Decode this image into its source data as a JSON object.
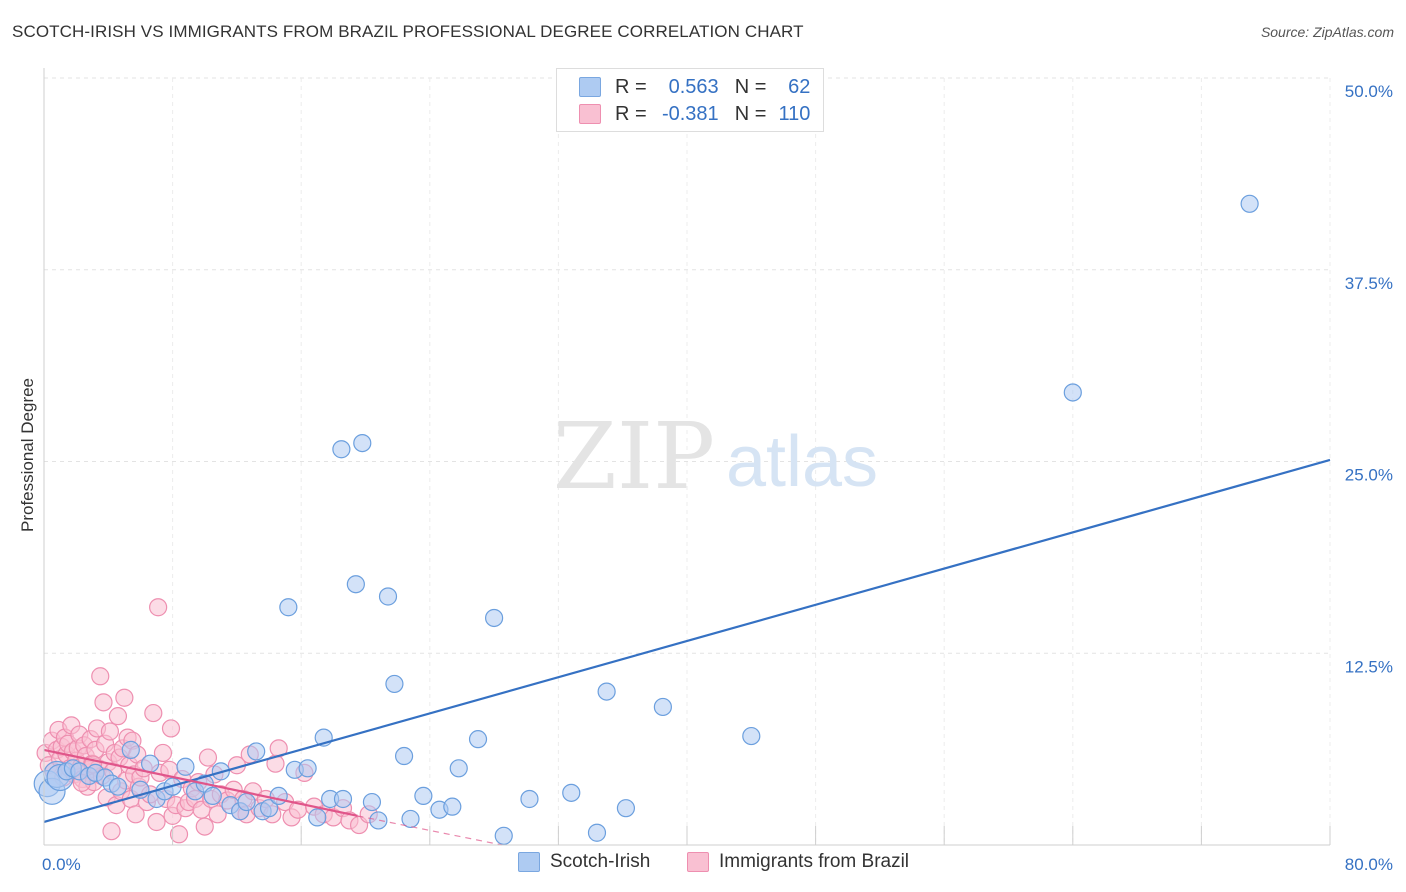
{
  "title": "SCOTCH-IRISH VS IMMIGRANTS FROM BRAZIL PROFESSIONAL DEGREE CORRELATION CHART",
  "source": "Source: ZipAtlas.com",
  "watermark": {
    "zip": "ZIP",
    "atlas": "atlas"
  },
  "stats": [
    {
      "r_label": "R =",
      "r_value": "0.563",
      "n_label": "N =",
      "n_value": "62",
      "color": "#aecbf2",
      "border": "#7aa7e0"
    },
    {
      "r_label": "R =",
      "r_value": "-0.381",
      "n_label": "N =",
      "n_value": "110",
      "color": "#f9c0d2",
      "border": "#ee8fb0"
    }
  ],
  "chart_data": {
    "type": "scatter",
    "title": "SCOTCH-IRISH VS IMMIGRANTS FROM BRAZIL PROFESSIONAL DEGREE CORRELATION CHART",
    "xlabel": "",
    "ylabel": "Professional Degree",
    "xlim": [
      0,
      80
    ],
    "ylim": [
      0,
      50
    ],
    "x_tick_labels": [
      "0.0%",
      "80.0%"
    ],
    "y_ticks": [
      12.5,
      25.0,
      37.5,
      50.0
    ],
    "y_tick_labels": [
      "12.5%",
      "25.0%",
      "37.5%",
      "50.0%"
    ],
    "grid": true,
    "legend_position": "bottom",
    "series": [
      {
        "name": "Scotch-Irish",
        "color": "#aecbf2",
        "stroke": "#6b9fde",
        "trend": {
          "x": [
            0,
            80
          ],
          "y": [
            1.5,
            25.1
          ],
          "color": "#3571c3",
          "dashed_to": null
        },
        "points": [
          [
            0.2,
            4.0
          ],
          [
            0.5,
            3.5
          ],
          [
            0.8,
            4.6
          ],
          [
            1.0,
            4.4
          ],
          [
            1.4,
            4.8
          ],
          [
            1.8,
            5.0
          ],
          [
            2.2,
            4.8
          ],
          [
            2.8,
            4.5
          ],
          [
            3.2,
            4.7
          ],
          [
            3.8,
            4.4
          ],
          [
            4.2,
            4.0
          ],
          [
            4.6,
            3.8
          ],
          [
            5.4,
            6.2
          ],
          [
            6.0,
            3.6
          ],
          [
            6.6,
            5.3
          ],
          [
            7.0,
            3.0
          ],
          [
            7.5,
            3.5
          ],
          [
            8.0,
            3.8
          ],
          [
            8.8,
            5.1
          ],
          [
            9.4,
            3.5
          ],
          [
            10.0,
            4.0
          ],
          [
            10.5,
            3.2
          ],
          [
            11.0,
            4.8
          ],
          [
            11.6,
            2.6
          ],
          [
            12.2,
            2.2
          ],
          [
            12.6,
            2.8
          ],
          [
            13.2,
            6.1
          ],
          [
            13.6,
            2.2
          ],
          [
            14.0,
            2.4
          ],
          [
            14.6,
            3.2
          ],
          [
            15.2,
            15.5
          ],
          [
            15.6,
            4.9
          ],
          [
            16.4,
            5.0
          ],
          [
            17.0,
            1.8
          ],
          [
            17.4,
            7.0
          ],
          [
            17.8,
            3.0
          ],
          [
            18.6,
            3.0
          ],
          [
            18.5,
            25.8
          ],
          [
            19.4,
            17.0
          ],
          [
            19.8,
            26.2
          ],
          [
            20.4,
            2.8
          ],
          [
            20.8,
            1.6
          ],
          [
            21.4,
            16.2
          ],
          [
            21.8,
            10.5
          ],
          [
            22.4,
            5.8
          ],
          [
            22.8,
            1.7
          ],
          [
            23.6,
            3.2
          ],
          [
            24.6,
            2.3
          ],
          [
            25.4,
            2.5
          ],
          [
            25.8,
            5.0
          ],
          [
            27.0,
            6.9
          ],
          [
            28.0,
            14.8
          ],
          [
            28.6,
            0.6
          ],
          [
            30.2,
            3.0
          ],
          [
            32.8,
            3.4
          ],
          [
            34.4,
            0.8
          ],
          [
            35.0,
            10.0
          ],
          [
            36.2,
            2.4
          ],
          [
            38.5,
            9.0
          ],
          [
            44.0,
            7.1
          ],
          [
            64.0,
            29.5
          ],
          [
            75.0,
            41.8
          ]
        ]
      },
      {
        "name": "Immigrants from Brazil",
        "color": "#f9c0d2",
        "stroke": "#ee8fb0",
        "trend": {
          "x": [
            0,
            19.5
          ],
          "y": [
            6.2,
            1.9
          ],
          "color": "#e0558a",
          "dashed_to": [
            28.5,
            0.0
          ]
        },
        "points": [
          [
            0.1,
            6.0
          ],
          [
            0.3,
            5.2
          ],
          [
            0.5,
            6.8
          ],
          [
            0.6,
            4.8
          ],
          [
            0.8,
            6.2
          ],
          [
            0.9,
            7.5
          ],
          [
            1.0,
            5.6
          ],
          [
            1.1,
            6.4
          ],
          [
            1.2,
            4.4
          ],
          [
            1.3,
            7.0
          ],
          [
            1.4,
            5.9
          ],
          [
            1.5,
            6.6
          ],
          [
            1.6,
            5.0
          ],
          [
            1.7,
            7.8
          ],
          [
            1.8,
            6.1
          ],
          [
            1.9,
            4.6
          ],
          [
            2.0,
            5.5
          ],
          [
            2.1,
            6.3
          ],
          [
            2.2,
            7.2
          ],
          [
            2.3,
            5.1
          ],
          [
            2.4,
            4.3
          ],
          [
            2.5,
            6.5
          ],
          [
            2.6,
            5.8
          ],
          [
            2.7,
            3.8
          ],
          [
            2.8,
            4.9
          ],
          [
            2.9,
            6.9
          ],
          [
            3.0,
            5.3
          ],
          [
            3.1,
            4.1
          ],
          [
            3.2,
            6.2
          ],
          [
            3.3,
            7.6
          ],
          [
            3.4,
            5.0
          ],
          [
            3.5,
            11.0
          ],
          [
            3.6,
            4.5
          ],
          [
            3.7,
            9.3
          ],
          [
            3.8,
            6.6
          ],
          [
            3.9,
            3.1
          ],
          [
            4.0,
            5.4
          ],
          [
            4.1,
            7.4
          ],
          [
            4.2,
            0.9
          ],
          [
            4.3,
            4.8
          ],
          [
            4.4,
            6.0
          ],
          [
            4.5,
            2.6
          ],
          [
            4.6,
            8.4
          ],
          [
            4.7,
            5.7
          ],
          [
            4.8,
            3.5
          ],
          [
            4.9,
            6.3
          ],
          [
            5.0,
            9.6
          ],
          [
            5.1,
            4.2
          ],
          [
            5.2,
            7.0
          ],
          [
            5.3,
            5.2
          ],
          [
            5.4,
            3.0
          ],
          [
            5.5,
            6.8
          ],
          [
            5.6,
            4.6
          ],
          [
            5.7,
            2.0
          ],
          [
            5.8,
            5.9
          ],
          [
            5.9,
            3.8
          ],
          [
            6.0,
            4.4
          ],
          [
            6.2,
            5.0
          ],
          [
            6.4,
            2.8
          ],
          [
            6.6,
            3.3
          ],
          [
            6.8,
            8.6
          ],
          [
            7.0,
            1.5
          ],
          [
            7.1,
            15.5
          ],
          [
            7.2,
            4.7
          ],
          [
            7.4,
            6.0
          ],
          [
            7.6,
            3.0
          ],
          [
            7.8,
            4.9
          ],
          [
            7.9,
            7.6
          ],
          [
            8.0,
            1.9
          ],
          [
            8.2,
            2.6
          ],
          [
            8.4,
            0.7
          ],
          [
            8.6,
            4.3
          ],
          [
            8.8,
            2.4
          ],
          [
            9.0,
            2.8
          ],
          [
            9.2,
            3.7
          ],
          [
            9.4,
            3.0
          ],
          [
            9.6,
            4.1
          ],
          [
            9.8,
            2.3
          ],
          [
            10.0,
            1.2
          ],
          [
            10.2,
            5.7
          ],
          [
            10.4,
            3.0
          ],
          [
            10.6,
            4.6
          ],
          [
            10.8,
            2.0
          ],
          [
            11.0,
            3.3
          ],
          [
            11.4,
            2.9
          ],
          [
            11.8,
            3.6
          ],
          [
            12.0,
            5.2
          ],
          [
            12.2,
            2.2
          ],
          [
            12.4,
            3.0
          ],
          [
            12.6,
            2.0
          ],
          [
            12.8,
            5.9
          ],
          [
            13.0,
            3.5
          ],
          [
            13.4,
            2.4
          ],
          [
            13.8,
            3.0
          ],
          [
            14.2,
            2.0
          ],
          [
            14.4,
            5.3
          ],
          [
            14.6,
            6.3
          ],
          [
            15.0,
            2.8
          ],
          [
            15.4,
            1.8
          ],
          [
            15.8,
            2.3
          ],
          [
            16.2,
            4.7
          ],
          [
            16.8,
            2.5
          ],
          [
            17.4,
            2.0
          ],
          [
            18.0,
            1.8
          ],
          [
            18.6,
            2.4
          ],
          [
            19.0,
            1.6
          ],
          [
            19.6,
            1.3
          ],
          [
            20.2,
            2.0
          ],
          [
            3.05,
            5.25
          ],
          [
            2.35,
            4.05
          ]
        ]
      }
    ]
  }
}
